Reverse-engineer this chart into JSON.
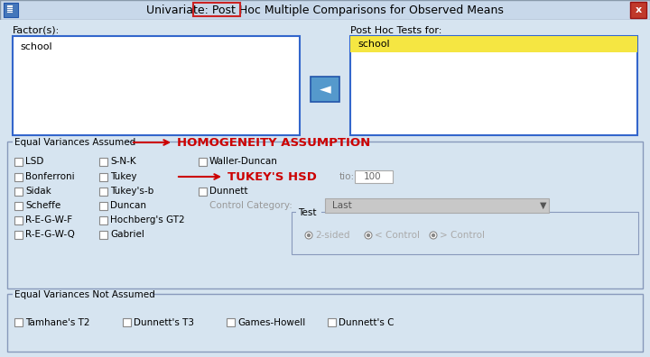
{
  "title_full": "Univariate: Post Hoc Multiple Comparisons for Observed Means",
  "bg_color": "#cddaea",
  "titlebar_bg": "#c8d8ea",
  "dialog_bg": "#d6e4f0",
  "close_btn_color": "#c0392b",
  "factors_label": "Factor(s):",
  "factors_value": "school",
  "posthoc_label": "Post Hoc Tests for:",
  "posthoc_value": "school",
  "posthoc_value_bg": "#f5e642",
  "arrow_btn_color": "#5599cc",
  "equal_var_label": "Equal Variances Assumed",
  "not_equal_var_label": "Equal Variances Not Assumed",
  "annotation1_text": "HOMOGENEITY ASSUMPTION",
  "annotation2_text": "TUKEY'S HSD",
  "arrow_color": "#cc0000",
  "annotation_color": "#cc0000",
  "col1_labels": [
    "LSD",
    "Bonferroni",
    "Sidak",
    "Scheffe",
    "R-E-G-W-F",
    "R-E-G-W-Q"
  ],
  "col2_labels": [
    "S-N-K",
    "Tukey",
    "Tukey's-b",
    "Duncan",
    "Hochberg's GT2",
    "Gabriel"
  ],
  "col3_labels": [
    "Waller-Duncan",
    "",
    "Dunnett",
    "",
    "",
    ""
  ],
  "tio_label": "tio:",
  "tio_value": "100",
  "control_category_label": "Control Category:",
  "control_category_value": "Last",
  "test_label": "Test",
  "test_options": [
    "2-sided",
    "< Control",
    "> Control"
  ],
  "not_assumed_items": [
    "Tamhane's T2",
    "Dunnett's T3",
    "Games-Howell",
    "Dunnett's C"
  ],
  "posthoc_border_color": "#cc2222",
  "listbox_border": "#3366cc",
  "groupbox_border": "#8899bb",
  "cb_border": "#888888",
  "dropdown_bg": "#c8c8c8"
}
